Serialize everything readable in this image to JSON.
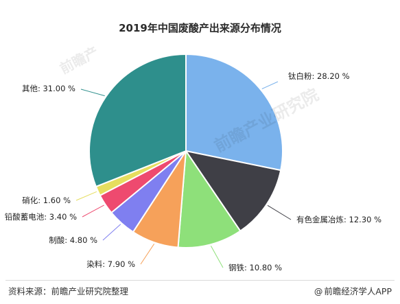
{
  "chart_data": {
    "type": "pie",
    "title": "2019年中国废酸产出来源分布情况",
    "slices": [
      {
        "name": "钛白粉",
        "value": 28.2,
        "label": "钛白粉: 28.20 %",
        "color": "#7ab2ec"
      },
      {
        "name": "有色金属冶炼",
        "value": 12.3,
        "label": "有色金属冶炼: 12.30 %",
        "color": "#3f3f46"
      },
      {
        "name": "钢铁",
        "value": 10.8,
        "label": "钢铁: 10.80 %",
        "color": "#8ee07a"
      },
      {
        "name": "染料",
        "value": 7.9,
        "label": "染料: 7.90 %",
        "color": "#f6a15a"
      },
      {
        "name": "制酸",
        "value": 4.8,
        "label": "制酸: 4.80 %",
        "color": "#7f7ff0"
      },
      {
        "name": "铅酸蓄电池",
        "value": 3.4,
        "label": "铅酸蓄电池: 3.40 %",
        "color": "#ee4a6f"
      },
      {
        "name": "硝化",
        "value": 1.6,
        "label": "硝化: 1.60 %",
        "color": "#e6de5f"
      },
      {
        "name": "其他",
        "value": 31.0,
        "label": "其他: 31.00 %",
        "color": "#2e8f8c"
      }
    ]
  },
  "footer": {
    "source": "资料来源：前瞻产业研究院整理",
    "credit_symbol": "@",
    "credit": "前瞻经济学人APP"
  },
  "watermark": {
    "left": "前瞻产",
    "right": "前瞻产业研究院"
  }
}
